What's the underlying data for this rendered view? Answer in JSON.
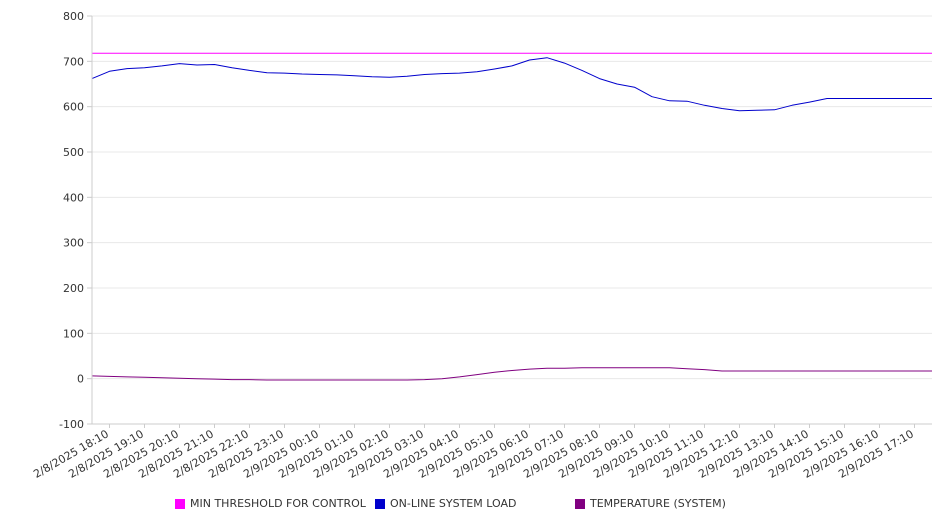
{
  "chart_data": {
    "type": "line",
    "ylim": [
      -100,
      800
    ],
    "y_ticks": [
      -100,
      0,
      100,
      200,
      300,
      400,
      500,
      600,
      700,
      800
    ],
    "grid": "horizontal",
    "legend_placement": "bottom",
    "x_tick_labels": [
      "2/8/2025 18:10",
      "2/8/2025 19:10",
      "2/8/2025 20:10",
      "2/8/2025 21:10",
      "2/8/2025 22:10",
      "2/8/2025 23:10",
      "2/9/2025 00:10",
      "2/9/2025 01:10",
      "2/9/2025 02:10",
      "2/9/2025 03:10",
      "2/9/2025 04:10",
      "2/9/2025 05:10",
      "2/9/2025 06:10",
      "2/9/2025 07:10",
      "2/9/2025 08:10",
      "2/9/2025 09:10",
      "2/9/2025 10:10",
      "2/9/2025 11:10",
      "2/9/2025 12:10",
      "2/9/2025 13:10",
      "2/9/2025 14:10",
      "2/9/2025 15:10",
      "2/9/2025 16:10",
      "2/9/2025 17:10"
    ],
    "x": [
      "2/8/2025 17:40",
      "2/8/2025 18:10",
      "2/8/2025 18:40",
      "2/8/2025 19:10",
      "2/8/2025 19:40",
      "2/8/2025 20:10",
      "2/8/2025 20:40",
      "2/8/2025 21:10",
      "2/8/2025 21:40",
      "2/8/2025 22:10",
      "2/8/2025 22:40",
      "2/8/2025 23:10",
      "2/8/2025 23:40",
      "2/9/2025 00:10",
      "2/9/2025 00:40",
      "2/9/2025 01:10",
      "2/9/2025 01:40",
      "2/9/2025 02:10",
      "2/9/2025 02:40",
      "2/9/2025 03:10",
      "2/9/2025 03:40",
      "2/9/2025 04:10",
      "2/9/2025 04:40",
      "2/9/2025 05:10",
      "2/9/2025 05:40",
      "2/9/2025 06:10",
      "2/9/2025 06:40",
      "2/9/2025 07:10",
      "2/9/2025 07:40",
      "2/9/2025 08:10",
      "2/9/2025 08:40",
      "2/9/2025 09:10",
      "2/9/2025 09:40",
      "2/9/2025 10:10",
      "2/9/2025 10:40",
      "2/9/2025 11:10",
      "2/9/2025 11:40",
      "2/9/2025 12:10",
      "2/9/2025 12:40",
      "2/9/2025 13:10",
      "2/9/2025 13:40",
      "2/9/2025 14:10",
      "2/9/2025 14:40",
      "2/9/2025 15:10",
      "2/9/2025 15:40",
      "2/9/2025 16:10",
      "2/9/2025 16:40",
      "2/9/2025 17:10",
      "2/9/2025 17:40"
    ],
    "series": [
      {
        "name": "MIN THRESHOLD FOR CONTROL",
        "color": "#ff00ff",
        "values": [
          718,
          718,
          718,
          718,
          718,
          718,
          718,
          718,
          718,
          718,
          718,
          718,
          718,
          718,
          718,
          718,
          718,
          718,
          718,
          718,
          718,
          718,
          718,
          718,
          718,
          718,
          718,
          718,
          718,
          718,
          718,
          718,
          718,
          718,
          718,
          718,
          718,
          718,
          718,
          718,
          718,
          718,
          718,
          718,
          718,
          718,
          718,
          718,
          718
        ]
      },
      {
        "name": "ON-LINE SYSTEM LOAD",
        "color": "#0000cc",
        "values": [
          662,
          678,
          684,
          686,
          690,
          695,
          692,
          693,
          686,
          680,
          675,
          674,
          672,
          671,
          670,
          668,
          666,
          665,
          667,
          671,
          673,
          674,
          677,
          683,
          690,
          703,
          708,
          696,
          680,
          662,
          650,
          643,
          622,
          613,
          612,
          603,
          596,
          591,
          592,
          593,
          603,
          610,
          618,
          618,
          618,
          618,
          618,
          618,
          618
        ]
      },
      {
        "name": "TEMPERATURE (SYSTEM)",
        "color": "#800080",
        "values": [
          6,
          5,
          4,
          3,
          2,
          1,
          0,
          -1,
          -2,
          -2,
          -3,
          -3,
          -3,
          -3,
          -3,
          -3,
          -3,
          -3,
          -3,
          -2,
          0,
          4,
          9,
          14,
          18,
          21,
          23,
          23,
          24,
          24,
          24,
          24,
          24,
          24,
          22,
          20,
          17,
          17,
          17,
          17,
          17,
          17,
          17,
          17,
          17,
          17,
          17,
          17,
          17
        ]
      }
    ]
  },
  "legend": {
    "items": [
      {
        "label": "MIN THRESHOLD FOR CONTROL",
        "color": "#ff00ff"
      },
      {
        "label": "ON-LINE SYSTEM LOAD",
        "color": "#0000cc"
      },
      {
        "label": "TEMPERATURE (SYSTEM)",
        "color": "#800080"
      }
    ]
  }
}
